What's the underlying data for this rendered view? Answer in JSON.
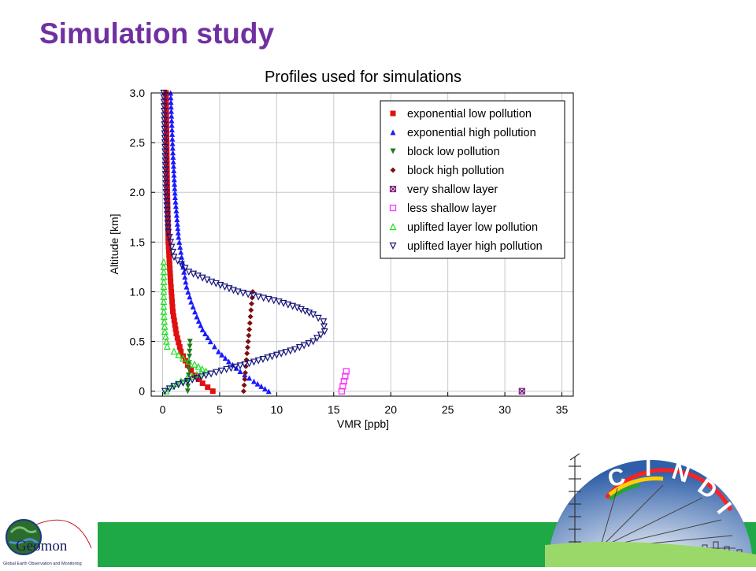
{
  "slide": {
    "title": "Simulation study"
  },
  "chart_data": {
    "type": "scatter",
    "title": "Profiles used for simulations",
    "xlabel": "VMR [ppb]",
    "ylabel": "Altitude [km]",
    "xlim": [
      -1,
      36
    ],
    "ylim": [
      -0.05,
      3.0
    ],
    "xticks": [
      0,
      5,
      10,
      15,
      20,
      25,
      30,
      35
    ],
    "yticks": [
      0,
      0.5,
      1.0,
      1.5,
      2.0,
      2.5,
      3.0
    ],
    "xtick_labels": [
      "0",
      "5",
      "10",
      "15",
      "20",
      "25",
      "30",
      "35"
    ],
    "ytick_labels": [
      "0",
      "0.5",
      "1.0",
      "1.5",
      "2.0",
      "2.5",
      "3.0"
    ],
    "grid": true,
    "legend_position": "top-right",
    "series": [
      {
        "name": "exponential low pollution",
        "marker": "square",
        "color": "#e01010",
        "x": [
          4.4,
          3.5,
          2.8,
          2.2,
          1.6,
          1.2,
          0.9,
          0.7,
          0.5,
          0.4,
          0.3
        ],
        "y": [
          0.0,
          0.08,
          0.16,
          0.26,
          0.4,
          0.58,
          0.8,
          1.1,
          1.5,
          2.1,
          3.0
        ]
      },
      {
        "name": "exponential high pollution",
        "marker": "triangle-up",
        "color": "#1a1aff",
        "x": [
          9.3,
          8.0,
          6.8,
          5.8,
          4.9,
          4.2,
          3.5,
          3.0,
          2.5,
          2.1,
          1.8,
          1.4,
          1.1,
          0.9,
          0.7
        ],
        "y": [
          0.0,
          0.1,
          0.2,
          0.3,
          0.4,
          0.5,
          0.62,
          0.75,
          0.9,
          1.05,
          1.25,
          1.55,
          1.95,
          2.4,
          3.0
        ]
      },
      {
        "name": "block low pollution",
        "marker": "triangle-down",
        "color": "#1f7a1f",
        "x": [
          2.2,
          2.25,
          2.3,
          2.35,
          2.4
        ],
        "y": [
          0.0,
          0.1,
          0.22,
          0.35,
          0.5
        ]
      },
      {
        "name": "block high pollution",
        "marker": "diamond",
        "color": "#7b1010",
        "x": [
          7.1,
          7.2,
          7.3,
          7.4,
          7.5,
          7.6,
          7.7,
          7.8,
          7.9
        ],
        "y": [
          0.0,
          0.12,
          0.25,
          0.38,
          0.5,
          0.62,
          0.75,
          0.88,
          1.0
        ]
      },
      {
        "name": "very shallow layer",
        "marker": "x-box",
        "color": "#7b1f7b",
        "x": [
          31.5
        ],
        "y": [
          0.0
        ]
      },
      {
        "name": "less shallow layer",
        "marker": "open-square",
        "color": "#ff33ff",
        "x": [
          15.7,
          15.8,
          15.9,
          16.0,
          16.1
        ],
        "y": [
          0.0,
          0.05,
          0.1,
          0.15,
          0.2
        ]
      },
      {
        "name": "uplifted layer low pollution",
        "marker": "open-triangle-up",
        "color": "#22dd22",
        "x": [
          0.3,
          0.8,
          1.6,
          2.6,
          3.8,
          2.8,
          1.8,
          1.0,
          0.4,
          0.2,
          0.1,
          0.1,
          0.1
        ],
        "y": [
          0.0,
          0.05,
          0.1,
          0.15,
          0.2,
          0.27,
          0.33,
          0.4,
          0.45,
          0.6,
          0.8,
          1.0,
          1.3
        ]
      },
      {
        "name": "uplifted layer high pollution",
        "marker": "open-triangle-down",
        "color": "#141478",
        "x": [
          0.2,
          1.0,
          2.2,
          3.8,
          5.6,
          7.6,
          9.6,
          11.6,
          13.2,
          14.2,
          14.1,
          13.2,
          11.8,
          10.2,
          8.4,
          6.6,
          4.3,
          2.3,
          1.0,
          0.5,
          0.3,
          0.2,
          0.1
        ],
        "y": [
          0.0,
          0.05,
          0.1,
          0.16,
          0.22,
          0.28,
          0.35,
          0.42,
          0.5,
          0.6,
          0.7,
          0.77,
          0.84,
          0.9,
          0.95,
          1.0,
          1.1,
          1.2,
          1.35,
          1.6,
          2.0,
          2.5,
          3.0
        ]
      }
    ]
  },
  "logos": {
    "left": {
      "text": "Geomon",
      "subtitle": "Global Earth Observation and Monitoring"
    },
    "right": {
      "text": "CINDI",
      "letters": [
        "C",
        "I",
        "N",
        "D",
        "I"
      ]
    }
  }
}
